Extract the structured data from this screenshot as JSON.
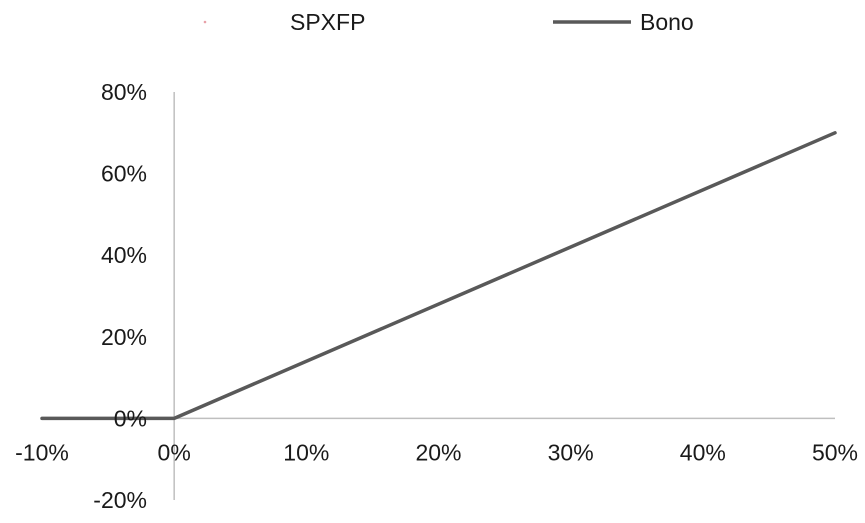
{
  "chart_data": {
    "type": "line",
    "title": "",
    "xlabel": "",
    "ylabel": "",
    "xlim": [
      -10,
      50
    ],
    "ylim": [
      -20,
      80
    ],
    "x_ticks": [
      -10,
      0,
      10,
      20,
      30,
      40,
      50
    ],
    "x_tick_labels": [
      "-10%",
      "0%",
      "10%",
      "20%",
      "30%",
      "40%",
      "50%"
    ],
    "y_ticks": [
      -20,
      0,
      20,
      40,
      60,
      80
    ],
    "y_tick_labels": [
      "-20%",
      "0%",
      "20%",
      "40%",
      "60%",
      "80%"
    ],
    "legend_position": "top-center",
    "grid": false,
    "series": [
      {
        "name": "SPXFP",
        "color": "#e8a0a8",
        "marker": "dot",
        "points": []
      },
      {
        "name": "Bono",
        "color": "#595959",
        "points": [
          {
            "x": -10,
            "y": 0
          },
          {
            "x": 0,
            "y": 0
          },
          {
            "x": 50,
            "y": 70
          }
        ]
      }
    ]
  }
}
